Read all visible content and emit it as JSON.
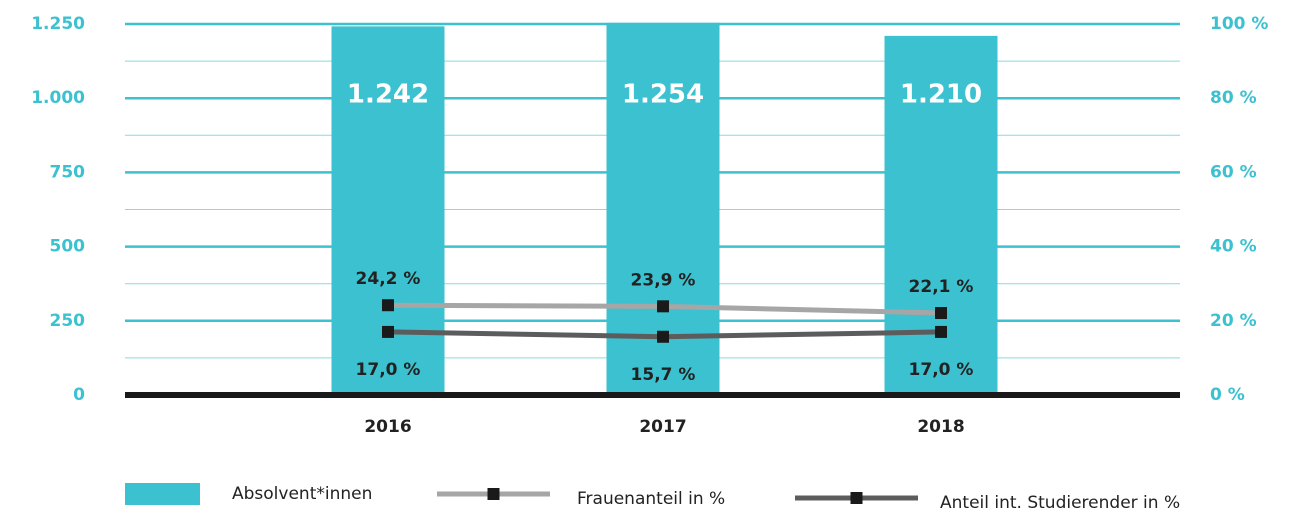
{
  "chart_data": {
    "type": "bar",
    "categories": [
      "2016",
      "2017",
      "2018"
    ],
    "series": [
      {
        "name": "Absolvent*innen",
        "color": "#3bc1cf",
        "values": [
          1242,
          1254,
          1210
        ],
        "value_labels": [
          "1.242",
          "1.254",
          "1.210"
        ]
      },
      {
        "name": "Frauenanteil in %",
        "type": "line",
        "axis": "y2",
        "color": "#a6a6a6",
        "values": [
          24.2,
          23.9,
          22.1
        ],
        "value_labels": [
          "24,2 %",
          "23,9 %",
          "22,1 %"
        ]
      },
      {
        "name": "Anteil int. Studierender in %",
        "type": "line",
        "axis": "y2",
        "color": "#5c5c5c",
        "values": [
          17.0,
          15.7,
          17.0
        ],
        "value_labels": [
          "17,0 %",
          "15,7 %",
          "17,0 %"
        ]
      }
    ],
    "ylim": [
      0,
      1250
    ],
    "yticks": [
      0,
      250,
      500,
      750,
      {
        "value": 1000,
        "label": "1.000"
      },
      {
        "value": 1250,
        "label": "1.250"
      }
    ],
    "minor_yticks": [
      125,
      375,
      625,
      875,
      1125
    ],
    "y2lim": [
      0,
      100
    ],
    "y2ticks": [
      {
        "value": 0,
        "label": "0 %"
      },
      {
        "value": 20,
        "label": "20 %"
      },
      {
        "value": 40,
        "label": "40 %"
      },
      {
        "value": 60,
        "label": "60 %"
      },
      {
        "value": 80,
        "label": "80 %"
      },
      {
        "value": 100,
        "label": "100 %"
      }
    ],
    "grid": true,
    "legend": "bottom"
  }
}
